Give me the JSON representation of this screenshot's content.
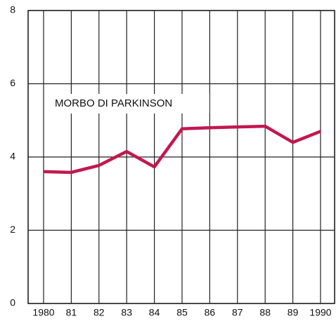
{
  "chart_data": {
    "type": "line",
    "annotation": "MORBO DI PARKINSON",
    "categories": [
      "1980",
      "81",
      "82",
      "83",
      "84",
      "85",
      "86",
      "87",
      "88",
      "89",
      "1990"
    ],
    "series": [
      {
        "name": "MORBO DI PARKINSON",
        "color": "#c2184f",
        "values": [
          3.6,
          3.58,
          3.77,
          4.15,
          3.73,
          4.77,
          4.8,
          4.82,
          4.84,
          4.4,
          4.7
        ]
      }
    ],
    "ylim": [
      0,
      8
    ],
    "yticks": [
      0,
      2,
      4,
      6,
      8
    ],
    "grid": true
  }
}
